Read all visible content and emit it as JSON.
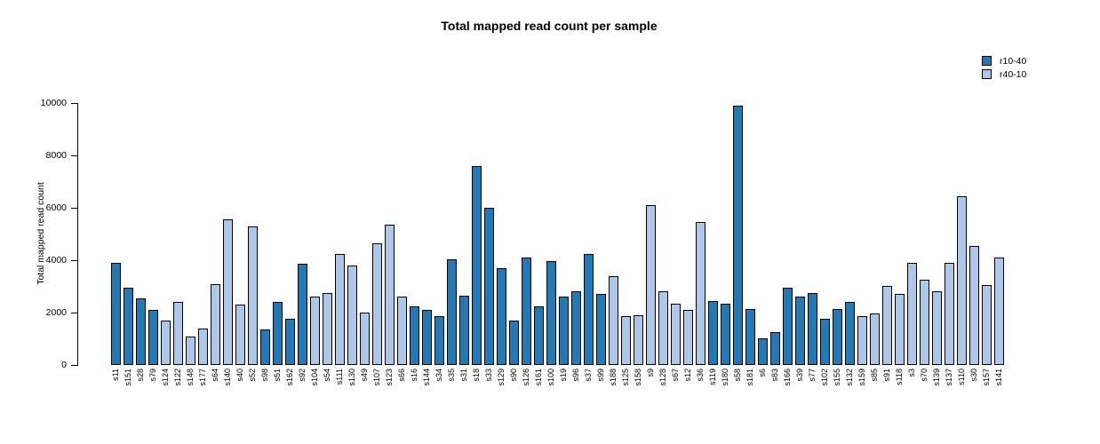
{
  "chart_data": {
    "type": "bar",
    "title": "Total mapped read count per sample",
    "xlabel": "",
    "ylabel": "Total mapped read count",
    "ylim": [
      0,
      10000
    ],
    "yticks": [
      0,
      2000,
      4000,
      6000,
      8000,
      10000
    ],
    "grid": false,
    "legend_position": "top-right",
    "legend": [
      {
        "name": "r10-40",
        "color": "#2478b4"
      },
      {
        "name": "r40-10",
        "color": "#aec7e8"
      }
    ],
    "bars": [
      {
        "label": "s11",
        "value": 3900,
        "series": "r10-40"
      },
      {
        "label": "s151",
        "value": 2950,
        "series": "r10-40"
      },
      {
        "label": "s28",
        "value": 2550,
        "series": "r10-40"
      },
      {
        "label": "s79",
        "value": 2100,
        "series": "r10-40"
      },
      {
        "label": "s124",
        "value": 1700,
        "series": "r40-10"
      },
      {
        "label": "s122",
        "value": 2400,
        "series": "r40-10"
      },
      {
        "label": "s148",
        "value": 1100,
        "series": "r40-10"
      },
      {
        "label": "s177",
        "value": 1400,
        "series": "r40-10"
      },
      {
        "label": "s64",
        "value": 3100,
        "series": "r40-10"
      },
      {
        "label": "s140",
        "value": 5550,
        "series": "r40-10"
      },
      {
        "label": "s40",
        "value": 2300,
        "series": "r40-10"
      },
      {
        "label": "s52",
        "value": 5300,
        "series": "r40-10"
      },
      {
        "label": "s98",
        "value": 1350,
        "series": "r10-40"
      },
      {
        "label": "s51",
        "value": 2400,
        "series": "r10-40"
      },
      {
        "label": "s162",
        "value": 1750,
        "series": "r10-40"
      },
      {
        "label": "s92",
        "value": 3850,
        "series": "r10-40"
      },
      {
        "label": "s104",
        "value": 2600,
        "series": "r40-10"
      },
      {
        "label": "s54",
        "value": 2750,
        "series": "r40-10"
      },
      {
        "label": "s111",
        "value": 4250,
        "series": "r40-10"
      },
      {
        "label": "s130",
        "value": 3800,
        "series": "r40-10"
      },
      {
        "label": "s49",
        "value": 2000,
        "series": "r40-10"
      },
      {
        "label": "s107",
        "value": 4650,
        "series": "r40-10"
      },
      {
        "label": "s123",
        "value": 5350,
        "series": "r40-10"
      },
      {
        "label": "s66",
        "value": 2600,
        "series": "r40-10"
      },
      {
        "label": "s16",
        "value": 2250,
        "series": "r10-40"
      },
      {
        "label": "s144",
        "value": 2100,
        "series": "r10-40"
      },
      {
        "label": "s34",
        "value": 1850,
        "series": "r10-40"
      },
      {
        "label": "s35",
        "value": 4050,
        "series": "r10-40"
      },
      {
        "label": "s31",
        "value": 2650,
        "series": "r10-40"
      },
      {
        "label": "s18",
        "value": 7600,
        "series": "r10-40"
      },
      {
        "label": "s33",
        "value": 6000,
        "series": "r10-40"
      },
      {
        "label": "s129",
        "value": 3700,
        "series": "r10-40"
      },
      {
        "label": "s90",
        "value": 1700,
        "series": "r10-40"
      },
      {
        "label": "s126",
        "value": 4100,
        "series": "r10-40"
      },
      {
        "label": "s161",
        "value": 2250,
        "series": "r10-40"
      },
      {
        "label": "s100",
        "value": 3950,
        "series": "r10-40"
      },
      {
        "label": "s19",
        "value": 2600,
        "series": "r10-40"
      },
      {
        "label": "s96",
        "value": 2800,
        "series": "r10-40"
      },
      {
        "label": "s37",
        "value": 4250,
        "series": "r10-40"
      },
      {
        "label": "s99",
        "value": 2700,
        "series": "r10-40"
      },
      {
        "label": "s188",
        "value": 3400,
        "series": "r40-10"
      },
      {
        "label": "s125",
        "value": 1850,
        "series": "r40-10"
      },
      {
        "label": "s158",
        "value": 1900,
        "series": "r40-10"
      },
      {
        "label": "s9",
        "value": 6100,
        "series": "r40-10"
      },
      {
        "label": "s128",
        "value": 2800,
        "series": "r40-10"
      },
      {
        "label": "s67",
        "value": 2350,
        "series": "r40-10"
      },
      {
        "label": "s12",
        "value": 2100,
        "series": "r40-10"
      },
      {
        "label": "s36",
        "value": 5450,
        "series": "r40-10"
      },
      {
        "label": "s119",
        "value": 2450,
        "series": "r10-40"
      },
      {
        "label": "s180",
        "value": 2350,
        "series": "r10-40"
      },
      {
        "label": "s58",
        "value": 9900,
        "series": "r10-40"
      },
      {
        "label": "s181",
        "value": 2150,
        "series": "r10-40"
      },
      {
        "label": "s6",
        "value": 1000,
        "series": "r10-40"
      },
      {
        "label": "s83",
        "value": 1250,
        "series": "r10-40"
      },
      {
        "label": "s166",
        "value": 2950,
        "series": "r10-40"
      },
      {
        "label": "s39",
        "value": 2600,
        "series": "r10-40"
      },
      {
        "label": "s77",
        "value": 2750,
        "series": "r10-40"
      },
      {
        "label": "s102",
        "value": 1750,
        "series": "r10-40"
      },
      {
        "label": "s155",
        "value": 2150,
        "series": "r10-40"
      },
      {
        "label": "s132",
        "value": 2400,
        "series": "r10-40"
      },
      {
        "label": "s159",
        "value": 1850,
        "series": "r40-10"
      },
      {
        "label": "s85",
        "value": 1950,
        "series": "r40-10"
      },
      {
        "label": "s91",
        "value": 3000,
        "series": "r40-10"
      },
      {
        "label": "s118",
        "value": 2700,
        "series": "r40-10"
      },
      {
        "label": "s3",
        "value": 3900,
        "series": "r40-10"
      },
      {
        "label": "s70",
        "value": 3250,
        "series": "r40-10"
      },
      {
        "label": "s139",
        "value": 2800,
        "series": "r40-10"
      },
      {
        "label": "s137",
        "value": 3900,
        "series": "r40-10"
      },
      {
        "label": "s110",
        "value": 6450,
        "series": "r40-10"
      },
      {
        "label": "s30",
        "value": 4550,
        "series": "r40-10"
      },
      {
        "label": "s157",
        "value": 3050,
        "series": "r40-10"
      },
      {
        "label": "s141",
        "value": 4100,
        "series": "r40-10"
      }
    ]
  }
}
